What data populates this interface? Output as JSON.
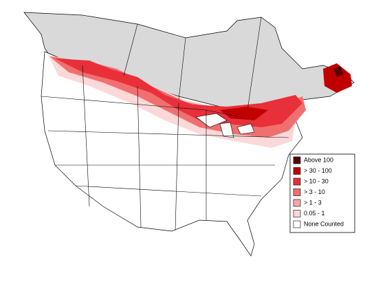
{
  "legend": {
    "items": [
      {
        "label": "Above 100",
        "color": "#5a0000"
      },
      {
        "label": "> 30 - 100",
        "color": "#c00000"
      },
      {
        "label": "> 10 - 30",
        "color": "#e8303a"
      },
      {
        "label": "> 3 - 10",
        "color": "#f07070"
      },
      {
        "label": "> 1 - 3",
        "color": "#f8a8a8"
      },
      {
        "label": "0.05 - 1",
        "color": "#fcd8d8"
      },
      {
        "label": "None Counted",
        "color": "#ffffff"
      }
    ]
  }
}
